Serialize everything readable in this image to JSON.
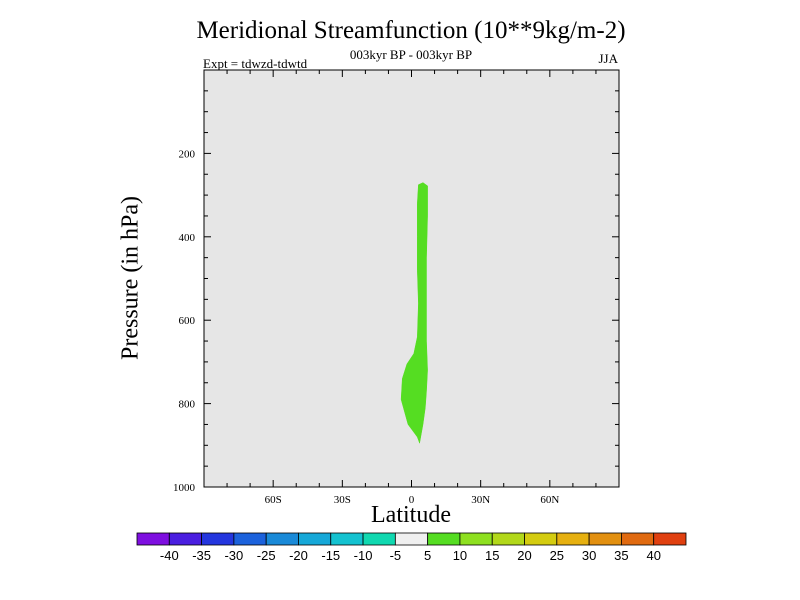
{
  "chart_data": {
    "type": "contour",
    "title": "Meridional Streamfunction (10**9kg/m-2)",
    "subtitle": "003kyr BP - 003kyr BP",
    "experiment": "Expt = tdwzd-tdwtd",
    "season": "JJA",
    "xlabel": "Latitude",
    "ylabel": "Pressure (in hPa)",
    "xlim": [
      -90,
      90
    ],
    "ylim": [
      1000,
      0
    ],
    "x_ticks": [
      {
        "value": -60,
        "label": "60S"
      },
      {
        "value": -30,
        "label": "30S"
      },
      {
        "value": 0,
        "label": "0"
      },
      {
        "value": 30,
        "label": "30N"
      },
      {
        "value": 60,
        "label": "60N"
      }
    ],
    "y_ticks": [
      {
        "value": 200,
        "label": "200"
      },
      {
        "value": 400,
        "label": "400"
      },
      {
        "value": 600,
        "label": "600"
      },
      {
        "value": 800,
        "label": "800"
      },
      {
        "value": 1000,
        "label": "1000"
      }
    ],
    "background_color": "#e6e6e6",
    "filled_regions": [
      {
        "range": "5 to 10",
        "color": "#55dd22",
        "polygon": [
          [
            3,
            275
          ],
          [
            5,
            270
          ],
          [
            7,
            278
          ],
          [
            7,
            350
          ],
          [
            6.5,
            450
          ],
          [
            6.5,
            560
          ],
          [
            6.5,
            650
          ],
          [
            7,
            720
          ],
          [
            6.5,
            770
          ],
          [
            6,
            810
          ],
          [
            5,
            850
          ],
          [
            3.5,
            895
          ],
          [
            2.5,
            880
          ],
          [
            -1.5,
            850
          ],
          [
            -3.5,
            810
          ],
          [
            -4.5,
            790
          ],
          [
            -4,
            740
          ],
          [
            -2,
            705
          ],
          [
            1,
            680
          ],
          [
            2.5,
            640
          ],
          [
            3,
            560
          ],
          [
            2.5,
            480
          ],
          [
            2.5,
            400
          ],
          [
            2.5,
            320
          ]
        ]
      }
    ],
    "colorbar": {
      "labels": [
        "-40",
        "-35",
        "-30",
        "-25",
        "-20",
        "-15",
        "-10",
        "-5",
        "5",
        "10",
        "15",
        "20",
        "25",
        "30",
        "35",
        "40"
      ],
      "colors": [
        "#7e0fe0",
        "#4a1ee0",
        "#2436de",
        "#1c62dc",
        "#1a8ad8",
        "#16a8d8",
        "#14c2d0",
        "#10d8b0",
        "#f0f0f0",
        "#55dd22",
        "#8ee020",
        "#b2d81a",
        "#d4cc10",
        "#e6b010",
        "#e29010",
        "#e06a10",
        "#e04010"
      ]
    }
  }
}
